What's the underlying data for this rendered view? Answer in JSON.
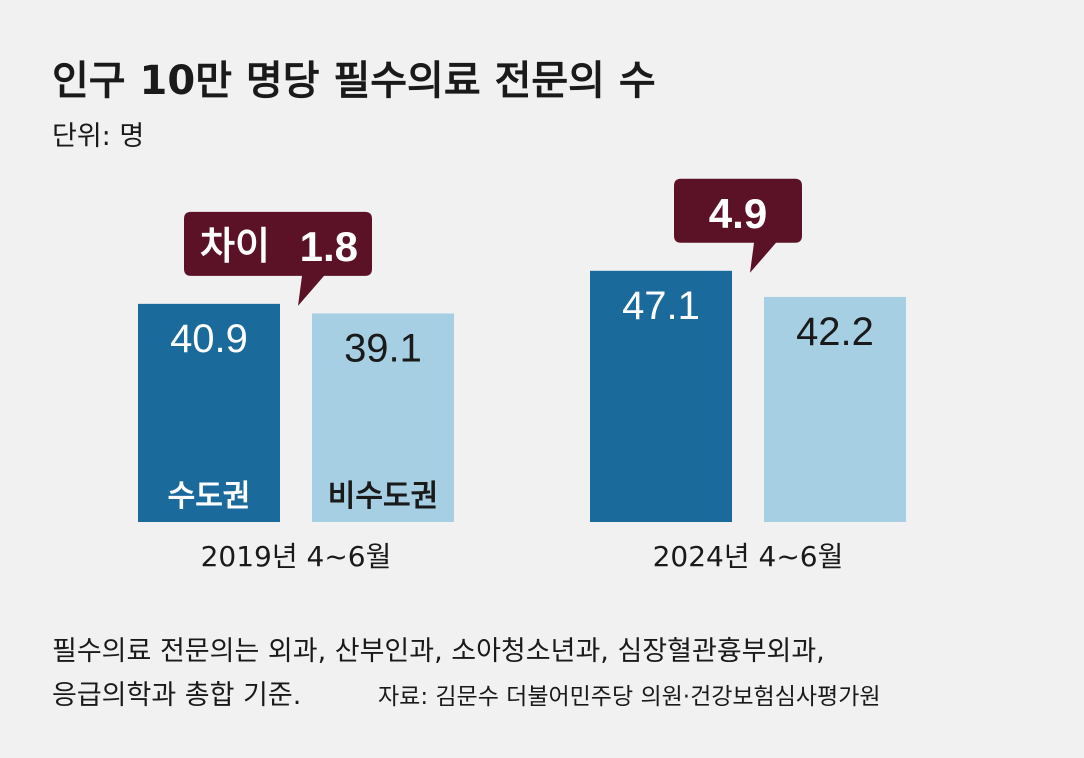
{
  "chart_data": {
    "type": "bar",
    "title": "인구 10만 명당 필수의료 전문의 수",
    "unit_label": "단위: 명",
    "categories": [
      "2019년 4~6월",
      "2024년 4~6월"
    ],
    "series": [
      {
        "name": "수도권",
        "values": [
          40.9,
          47.1
        ],
        "value_labels": [
          "40.9",
          "47.1"
        ],
        "color": "#1b6a9c"
      },
      {
        "name": "비수도권",
        "values": [
          39.1,
          42.2
        ],
        "value_labels": [
          "39.1",
          "42.2"
        ],
        "color": "#a6cfe3"
      }
    ],
    "callouts": [
      {
        "prefix": "차이",
        "value": "1.8"
      },
      {
        "prefix": "",
        "value": "4.9"
      }
    ],
    "ylim": [
      0,
      66
    ],
    "callout_color": "#5b1227"
  },
  "footnote": {
    "line1": "필수의료 전문의는 외과, 산부인과, 소아청소년과, 심장혈관흉부외과,",
    "line2": "응급의학과 총합 기준.",
    "source": "자료: 김문수 더불어민주당 의원·건강보험심사평가원"
  }
}
